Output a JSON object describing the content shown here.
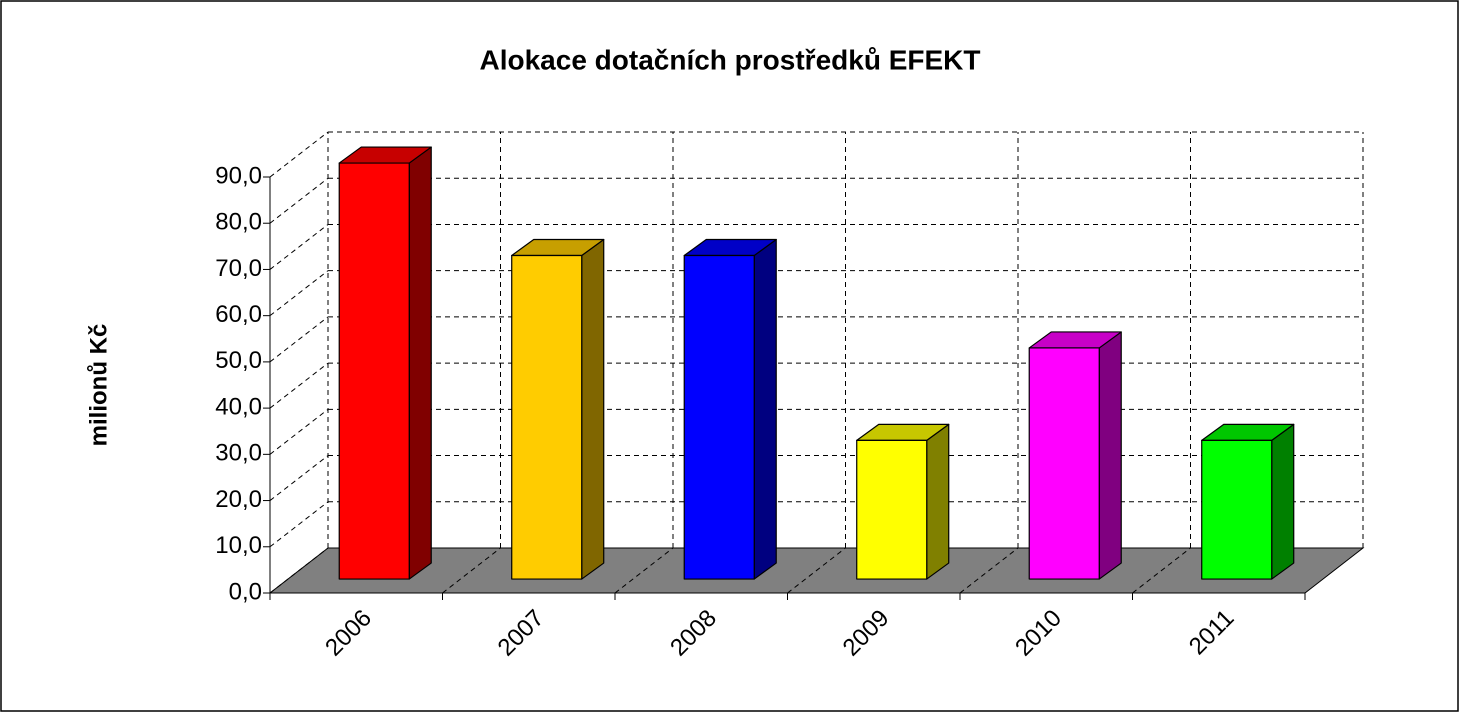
{
  "chart_data": {
    "type": "bar3d",
    "title": "Alokace dotačních prostředků EFEKT",
    "ylabel": "milionů Kč",
    "categories": [
      "2006",
      "2007",
      "2008",
      "2009",
      "2010",
      "2011"
    ],
    "values": [
      90,
      70,
      70,
      30,
      50,
      30
    ],
    "colors": [
      "#ff0000",
      "#ffcc00",
      "#0000ff",
      "#ffff00",
      "#ff00ff",
      "#00ff00"
    ],
    "ylim": [
      0,
      90
    ],
    "yticks": [
      {
        "value": 0,
        "label": "0,0"
      },
      {
        "value": 10,
        "label": "10,0"
      },
      {
        "value": 20,
        "label": "20,0"
      },
      {
        "value": 30,
        "label": "30,0"
      },
      {
        "value": 40,
        "label": "40,0"
      },
      {
        "value": 50,
        "label": "50,0"
      },
      {
        "value": 60,
        "label": "60,0"
      },
      {
        "value": 70,
        "label": "70,0"
      },
      {
        "value": 80,
        "label": "80,0"
      },
      {
        "value": 90,
        "label": "90,0"
      }
    ],
    "grid": true
  }
}
